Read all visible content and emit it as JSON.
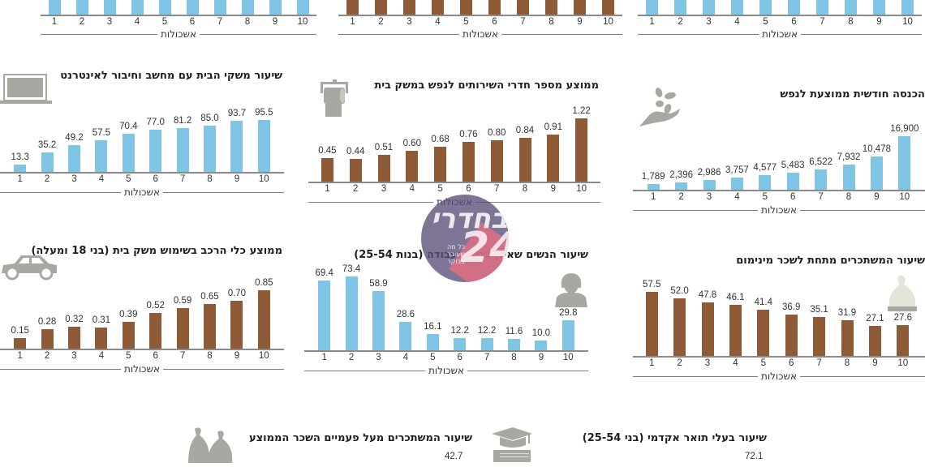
{
  "common": {
    "xlabel": "אשכולות",
    "ticks": [
      "1",
      "2",
      "3",
      "4",
      "5",
      "6",
      "7",
      "8",
      "9",
      "10"
    ]
  },
  "colors": {
    "blue": "#7ec5e6",
    "brown": "#8f5a36",
    "icon_gray": "#a8a8a2",
    "axis": "#8a8a8a"
  },
  "watermark": {
    "text": "בחדרי",
    "num": "24",
    "sub": "כל מה שעובר בבוקר"
  },
  "top_row": [
    {
      "id": "top-left",
      "color": "blue",
      "xlabel": "אשכולות",
      "ticks": [
        "1",
        "2",
        "3",
        "4",
        "5",
        "6",
        "7",
        "8",
        "9",
        "10"
      ]
    },
    {
      "id": "top-middle",
      "color": "brown",
      "xlabel": "אשכולות",
      "ticks": [
        "1",
        "2",
        "3",
        "4",
        "5",
        "6",
        "7",
        "8",
        "9",
        "10"
      ]
    },
    {
      "id": "top-right",
      "color": "blue",
      "xlabel": "אשכולות",
      "ticks": [
        "1",
        "2",
        "3",
        "4",
        "5",
        "6",
        "7",
        "8",
        "9",
        "10"
      ]
    }
  ],
  "bottom_row": [
    {
      "title": "שיעור המשתכרים מעל פעמיים השכר הממוצע",
      "first_value": "42.7",
      "icon": "money-bags-icon"
    },
    {
      "title": "שיעור בעלי תואר אקדמי (בני 25-54)",
      "first_value": "72.1",
      "icon": "graduation-cap-books-icon"
    }
  ],
  "chart_data": [
    {
      "type": "bar",
      "title": "שיעור משקי הבית עם מחשב וחיבור לאינטרנט",
      "xlabel": "אשכולות",
      "ylabel": "",
      "categories": [
        "1",
        "2",
        "3",
        "4",
        "5",
        "6",
        "7",
        "8",
        "9",
        "10"
      ],
      "values": [
        13.3,
        35.2,
        49.2,
        57.5,
        70.4,
        77.0,
        81.2,
        85.0,
        93.7,
        95.5
      ],
      "labels": [
        "13.3",
        "35.2",
        "49.2",
        "57.5",
        "70.4",
        "77.0",
        "81.2",
        "85.0",
        "93.7",
        "95.5"
      ],
      "color": "#7ec5e6",
      "icon": "laptop-icon",
      "grid": false
    },
    {
      "type": "bar",
      "title": "ממוצע מספר חדרי השירותים לנפש במשק בית",
      "xlabel": "אשכולות",
      "ylabel": "",
      "categories": [
        "1",
        "2",
        "3",
        "4",
        "5",
        "6",
        "7",
        "8",
        "9",
        "10"
      ],
      "values": [
        0.45,
        0.44,
        0.51,
        0.6,
        0.68,
        0.76,
        0.8,
        0.84,
        0.91,
        1.22
      ],
      "labels": [
        "0.45",
        "0.44",
        "0.51",
        "0.60",
        "0.68",
        "0.76",
        "0.80",
        "0.84",
        "0.91",
        "1.22"
      ],
      "color": "#8f5a36",
      "icon": "toilet-paper-icon",
      "grid": false
    },
    {
      "type": "bar",
      "title": "הכנסה חודשית ממוצעת לנפש",
      "xlabel": "אשכולות",
      "ylabel": "",
      "categories": [
        "1",
        "2",
        "3",
        "4",
        "5",
        "6",
        "7",
        "8",
        "9",
        "10"
      ],
      "values": [
        1789,
        2396,
        2986,
        3757,
        4577,
        5483,
        6522,
        7932,
        10478,
        16900
      ],
      "labels": [
        "1,789",
        "2,396",
        "2,986",
        "3,757",
        "4,577",
        "5,483",
        "6,522",
        "7,932",
        "10,478",
        "16,900"
      ],
      "color": "#7ec5e6",
      "icon": "hand-coins-icon",
      "grid": false
    },
    {
      "type": "bar",
      "title": "ממוצע כלי הרכב בשימוש משק בית (בני 18 ומעלה)",
      "xlabel": "אשכולות",
      "ylabel": "",
      "categories": [
        "1",
        "2",
        "3",
        "4",
        "5",
        "6",
        "7",
        "8",
        "9",
        "10"
      ],
      "values": [
        0.15,
        0.28,
        0.32,
        0.31,
        0.39,
        0.52,
        0.59,
        0.65,
        0.7,
        0.85
      ],
      "labels": [
        "0.15",
        "0.28",
        "0.32",
        "0.31",
        "0.39",
        "0.52",
        "0.59",
        "0.65",
        "0.70",
        "0.85"
      ],
      "color": "#8f5a36",
      "icon": "car-icon",
      "grid": false
    },
    {
      "type": "bar",
      "title": "שיעור הנשים שאינן בכוח העבודה (בנות 25-54)",
      "xlabel": "אשכולות",
      "ylabel": "",
      "categories": [
        "1",
        "2",
        "3",
        "4",
        "5",
        "6",
        "7",
        "8",
        "9",
        "10"
      ],
      "values": [
        69.4,
        73.4,
        58.9,
        28.6,
        16.1,
        12.2,
        12.2,
        11.6,
        10.0,
        29.8
      ],
      "labels": [
        "69.4",
        "73.4",
        "58.9",
        "28.6",
        "16.1",
        "12.2",
        "12.2",
        "11.6",
        "10.0",
        "29.8"
      ],
      "color": "#7ec5e6",
      "icon": "woman-icon",
      "grid": false
    },
    {
      "type": "bar",
      "title": "שיעור המשתכרים מתחת לשכר מינימום",
      "xlabel": "אשכולות",
      "ylabel": "",
      "categories": [
        "1",
        "2",
        "3",
        "4",
        "5",
        "6",
        "7",
        "8",
        "9",
        "10"
      ],
      "values": [
        57.5,
        52.0,
        47.8,
        46.1,
        41.4,
        36.9,
        35.1,
        31.9,
        27.1,
        27.6
      ],
      "labels": [
        "57.5",
        "52.0",
        "47.8",
        "46.1",
        "41.4",
        "36.9",
        "35.1",
        "31.9",
        "27.1",
        "27.6"
      ],
      "color": "#8f5a36",
      "icon": "money-bag-icon",
      "grid": false
    }
  ]
}
